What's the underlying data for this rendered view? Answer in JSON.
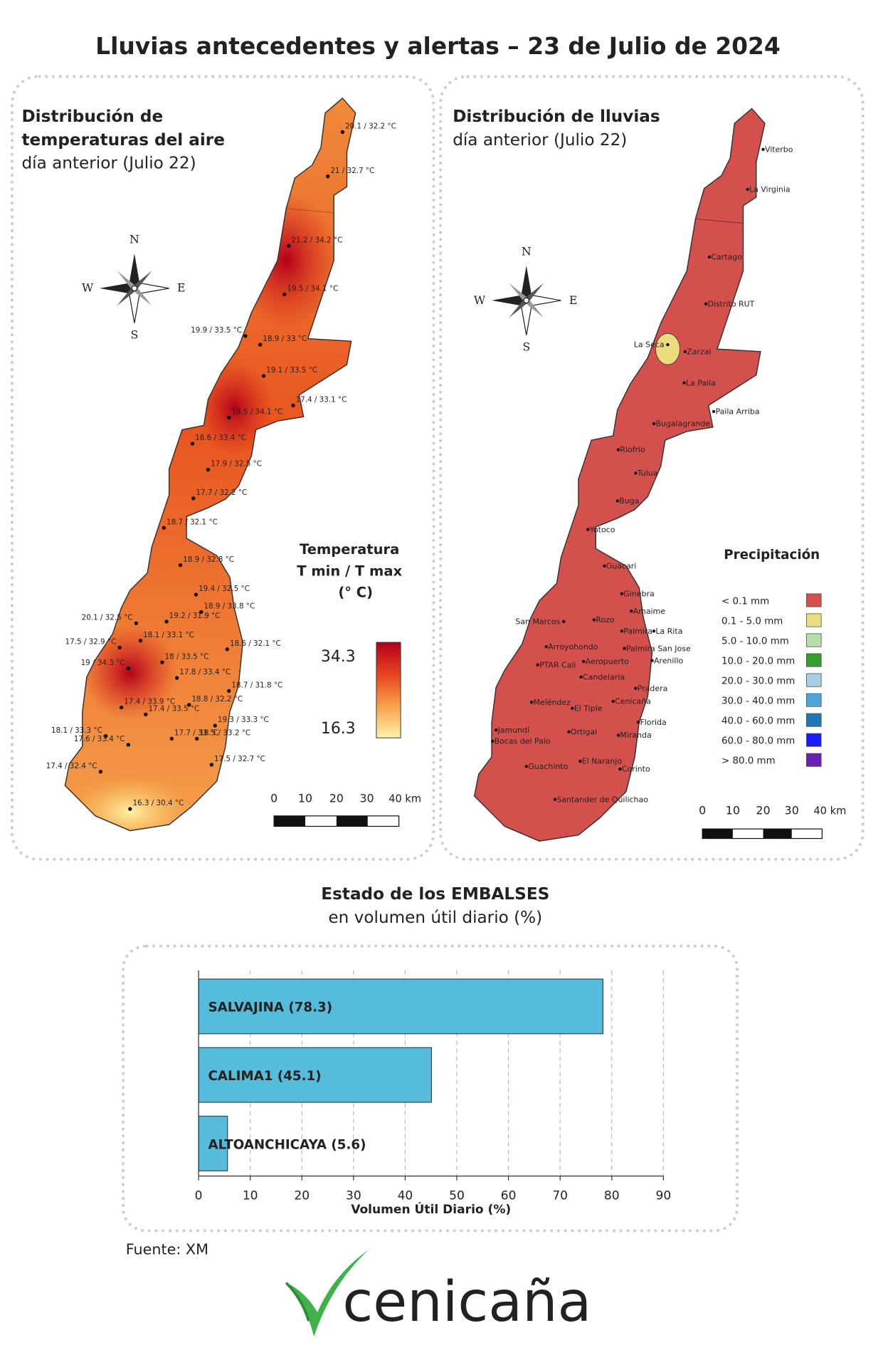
{
  "title": "Lluvias antecedentes y alertas – 23 de Julio de 2024",
  "temperature_map": {
    "title_lines": [
      "Distribución de",
      "temperaturas del aire"
    ],
    "subtitle": "día anterior (Julio 22)",
    "compass": [
      "N",
      "S",
      "E",
      "W"
    ],
    "stations": [
      "20.1 / 32.2 °C",
      "21 / 32.7 °C",
      "21.2 / 34.2 °C",
      "19.5 / 34.1 °C",
      "19.9 / 33.5 °C",
      "18.9 / 33 °C",
      "19.1 / 33.5 °C",
      "17.4 / 33.1 °C",
      "18.5 / 34.1 °C",
      "18.6 / 33.4 °C",
      "17.9 / 32.5 °C",
      "17.7 / 32.2 °C",
      "18.7 / 32.1 °C",
      "18.9 / 32.8 °C",
      "19.4 / 32.5 °C",
      "18.9 / 33.8 °C",
      "20.1 / 32.5 °C",
      "19.2 / 31.9 °C",
      "17.5 / 32.9 °C",
      "18.1 / 33.1 °C",
      "18.6 / 32.1 °C",
      "19 / 34.3 °C",
      "18 / 33.5 °C",
      "17.8 / 33.4 °C",
      "18.7 / 31.8 °C",
      "17.4 / 33.9 °C",
      "18.8 / 32.2 °C",
      "17.4 / 33.5 °C",
      "19.3 / 33.3 °C",
      "18.1 / 33.3 °C",
      "17.7 / 33 °C",
      "17.6 / 33.4 °C",
      "18.5 / 33.2 °C",
      "17.5 / 32.7 °C",
      "17.4 / 32.4 °C",
      "16.3 / 30.4 °C"
    ],
    "legend": {
      "title_lines": [
        "Temperatura",
        "T min / T max",
        "(° C)"
      ],
      "max": 34.3,
      "min": 16.3,
      "colors": [
        "#b3001b",
        "#e8431f",
        "#f7a14a",
        "#fff3a8"
      ]
    },
    "scale": [
      "0",
      "10",
      "20",
      "30",
      "40 km"
    ]
  },
  "rain_map": {
    "title": "Distribución de lluvias",
    "subtitle": "día anterior (Julio 22)",
    "compass": [
      "N",
      "S",
      "E",
      "W"
    ],
    "towns": [
      "Viterbo",
      "La Virginia",
      "Cartago",
      "Distrito RUT",
      "La Seca",
      "Zarzal",
      "La Paila",
      "Paila Arriba",
      "Bugalagrande",
      "Riofrio",
      "Tulua",
      "Buga",
      "Yotoco",
      "Guacari",
      "Ginebra",
      "Amaime",
      "San Marcos",
      "Rozo",
      "Palmira",
      "La Rita",
      "Arroyohondo",
      "Palmira San Jose",
      "Aeropuerto",
      "Arenillo",
      "PTAR Cali",
      "Candelaria",
      "Pradera",
      "Cenicaña",
      "Meléndez",
      "El Tiple",
      "Florida",
      "Ortigal",
      "Jamundí",
      "Bocas del Palo",
      "Miranda",
      "El Naranjo",
      "Guachinto",
      "Corinto",
      "Santander de Quilichao"
    ],
    "legend": {
      "title": "Precipitación",
      "items": [
        {
          "label": "< 0.1 mm",
          "color": "#d4504d"
        },
        {
          "label": "0.1 - 5.0 mm",
          "color": "#ebdc7e"
        },
        {
          "label": "5.0 - 10.0 mm",
          "color": "#b5e0a7"
        },
        {
          "label": "10.0 - 20.0 mm",
          "color": "#33a02c"
        },
        {
          "label": "20.0 - 30.0 mm",
          "color": "#a6cee3"
        },
        {
          "label": "30.0 - 40.0 mm",
          "color": "#4aa6dd"
        },
        {
          "label": "40.0 - 60.0 mm",
          "color": "#1f78b4"
        },
        {
          "label": "60.0 - 80.0 mm",
          "color": "#1a1aff"
        },
        {
          "label": "> 80.0 mm",
          "color": "#6a1fb5"
        }
      ]
    },
    "scale": [
      "0",
      "10",
      "20",
      "30",
      "40 km"
    ]
  },
  "chart_data": {
    "type": "bar",
    "orientation": "horizontal",
    "title": "Estado de los EMBALSES",
    "subtitle": "en volumen útil diario (%)",
    "categories": [
      "SALVAJINA (78.3)",
      "CALIMA1 (45.1)",
      "ALTOANCHICAYA (5.6)"
    ],
    "values": [
      78.3,
      45.1,
      5.6
    ],
    "color": "#56bcdc",
    "xlabel": "Volumen Útil Diario (%)",
    "xlim": [
      0,
      90
    ],
    "xticks": [
      0,
      10,
      20,
      30,
      40,
      50,
      60,
      70,
      80,
      90
    ],
    "grid": true
  },
  "source": "Fuente: XM",
  "logo": "cenicaña"
}
